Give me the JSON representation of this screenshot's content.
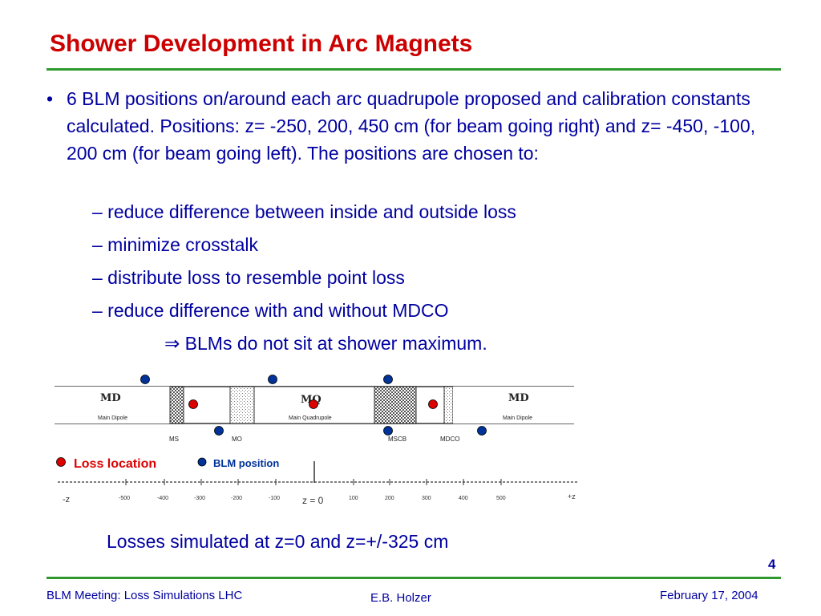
{
  "slide": {
    "title": "Shower Development in Arc Magnets",
    "bullet": {
      "marker": "•",
      "text": "6 BLM positions on/around each arc quadrupole proposed and calibration constants calculated. Positions: z= -250, 200, 450 cm (for beam going right) and z= -450, -100, 200 cm (for beam going left). The positions are chosen to:"
    },
    "sub_items": [
      "– reduce difference between inside and outside loss",
      "– minimize crosstalk",
      "– distribute loss to resemble point loss",
      "– reduce difference with and without MDCO"
    ],
    "conclusion": "⇒ BLMs do not sit at shower maximum.",
    "caption": "Losses simulated at z=0 and z=+/-325 cm",
    "page_number": "4"
  },
  "diagram": {
    "magnets": [
      {
        "label": "MD",
        "sublabel": "Main Dipole"
      },
      {
        "label": "MQ",
        "sublabel": "Main Quadrupole"
      },
      {
        "label": "MD",
        "sublabel": "Main Dipole"
      }
    ],
    "component_labels": [
      "MS",
      "MO",
      "MSCB",
      "MDCO"
    ],
    "legend": {
      "loss": "Loss location",
      "blm": "BLM position"
    },
    "axis": {
      "start_label": "-z",
      "end_label": "+z",
      "center_label": "z = 0",
      "ticks": [
        "-500",
        "-400",
        "-300",
        "-200",
        "-100",
        "100",
        "200",
        "300",
        "400",
        "500"
      ]
    },
    "colors": {
      "loss": "#dd0000",
      "blm": "#003399",
      "text": "#0000a0",
      "title": "#cc0000",
      "rule": "#2e9a2e"
    }
  },
  "footer": {
    "left": "BLM Meeting: Loss Simulations LHC",
    "center": "E.B. Holzer",
    "right": "February 17, 2004"
  }
}
